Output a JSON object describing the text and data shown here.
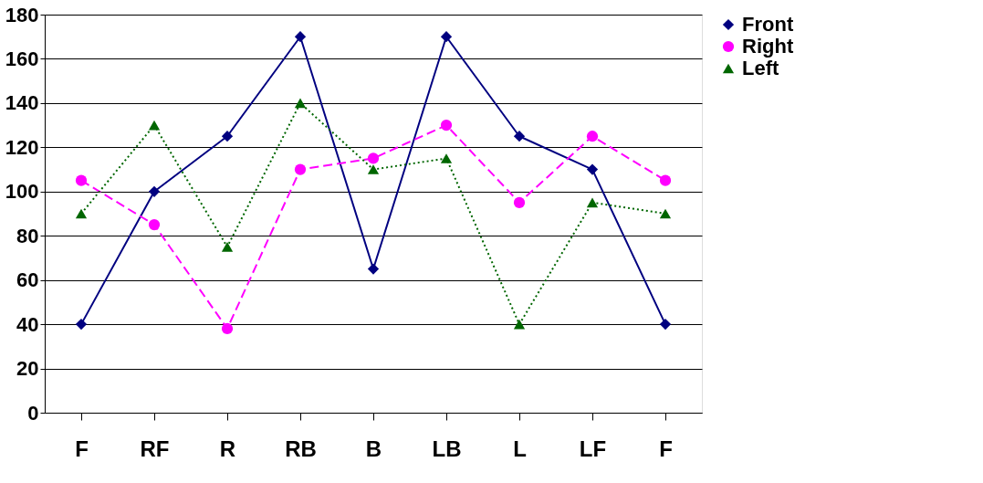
{
  "chart_data": {
    "type": "line",
    "categories": [
      "F",
      "RF",
      "R",
      "RB",
      "B",
      "LB",
      "L",
      "LF",
      "F"
    ],
    "series": [
      {
        "name": "Front",
        "color": "#000080",
        "marker": "diamond",
        "line_style": "solid",
        "values": [
          40,
          100,
          125,
          170,
          65,
          170,
          125,
          110,
          40
        ]
      },
      {
        "name": "Right",
        "color": "#ff00ff",
        "marker": "circle",
        "line_style": "dashed",
        "values": [
          105,
          85,
          38,
          110,
          115,
          130,
          95,
          125,
          105
        ]
      },
      {
        "name": "Left",
        "color": "#006600",
        "marker": "triangle",
        "line_style": "dotted",
        "values": [
          90,
          130,
          75,
          140,
          110,
          115,
          40,
          95,
          90
        ]
      }
    ],
    "ylim": [
      0,
      180
    ],
    "yticks": [
      0,
      20,
      40,
      60,
      80,
      100,
      120,
      140,
      160,
      180
    ],
    "grid": "y",
    "legend": "right"
  }
}
